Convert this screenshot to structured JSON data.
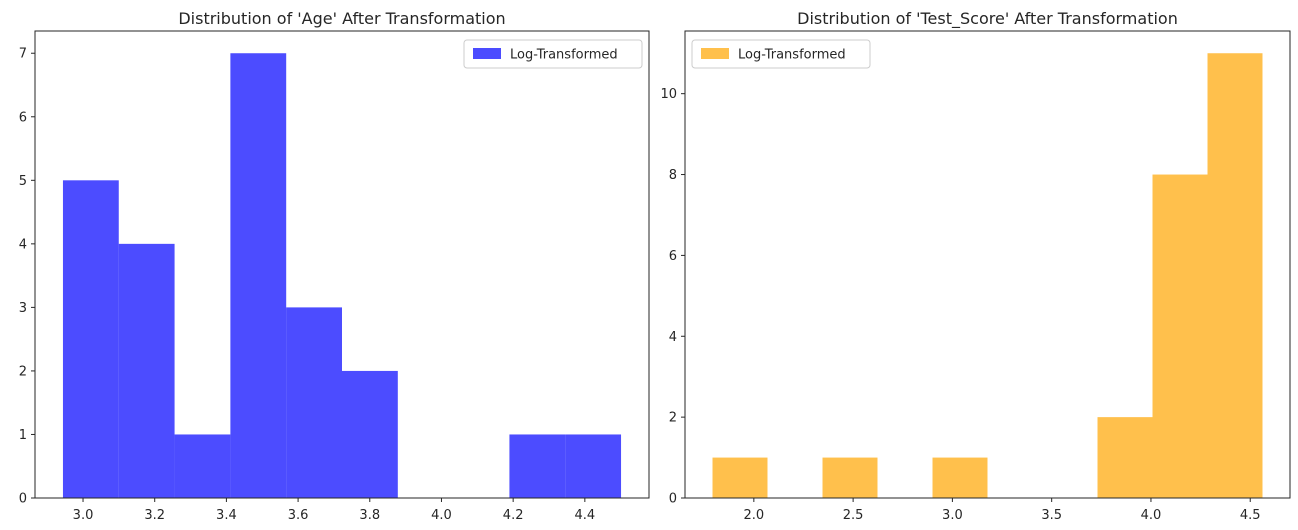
{
  "chart_data": [
    {
      "type": "histogram",
      "title": "Distribution of 'Age' After Transformation",
      "xlabel": "",
      "ylabel": "",
      "legend": {
        "label": "Log-Transformed",
        "position": "top-right"
      },
      "color": "#0000ff",
      "alpha": 0.7,
      "bin_edges": [
        2.944,
        3.0997,
        3.2554,
        3.4111,
        3.5668,
        3.7225,
        3.8782,
        4.0339,
        4.1896,
        4.3453,
        4.501
      ],
      "counts": [
        5,
        4,
        1,
        7,
        3,
        2,
        0,
        0,
        1,
        1
      ],
      "xlim": [
        2.866,
        4.579
      ],
      "ylim": [
        0,
        7.35
      ],
      "xticks": [
        3.0,
        3.2,
        3.4,
        3.6,
        3.8,
        4.0,
        4.2,
        4.4
      ],
      "xtick_labels": [
        "3.0",
        "3.2",
        "3.4",
        "3.6",
        "3.8",
        "4.0",
        "4.2",
        "4.4"
      ],
      "yticks": [
        0,
        1,
        2,
        3,
        4,
        5,
        6,
        7
      ],
      "ytick_labels": [
        "0",
        "1",
        "2",
        "3",
        "4",
        "5",
        "6",
        "7"
      ],
      "grid": false
    },
    {
      "type": "histogram",
      "title": "Distribution of 'Test_Score' After Transformation",
      "xlabel": "",
      "ylabel": "",
      "legend": {
        "label": "Log-Transformed",
        "position": "top-left"
      },
      "color": "#ffa500",
      "alpha": 0.7,
      "bin_edges": [
        1.7918,
        2.0688,
        2.3458,
        2.6228,
        2.8998,
        3.1768,
        3.4538,
        3.7308,
        4.0078,
        4.2848,
        4.5618
      ],
      "counts": [
        1,
        0,
        1,
        0,
        1,
        0,
        0,
        2,
        8,
        11
      ],
      "xlim": [
        1.6533,
        4.7003
      ],
      "ylim": [
        0,
        11.55
      ],
      "xticks": [
        2.0,
        2.5,
        3.0,
        3.5,
        4.0,
        4.5
      ],
      "xtick_labels": [
        "2.0",
        "2.5",
        "3.0",
        "3.5",
        "4.0",
        "4.5"
      ],
      "yticks": [
        0,
        2,
        4,
        6,
        8,
        10
      ],
      "ytick_labels": [
        "0",
        "2",
        "4",
        "6",
        "8",
        "10"
      ],
      "grid": false
    }
  ]
}
